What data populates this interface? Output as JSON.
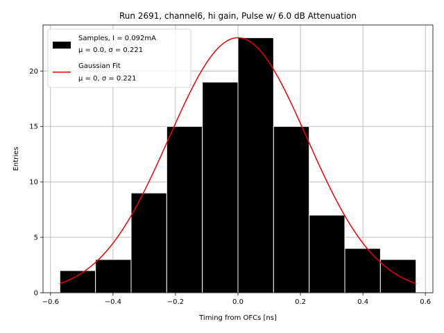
{
  "chart_data": {
    "type": "bar",
    "title": "Run 2691, channel6, hi gain, Pulse w/ 6.0 dB Attenuation",
    "xlabel": "Timing from OFCs [ns]",
    "ylabel": "Entries",
    "xlim": [
      -0.624,
      0.624
    ],
    "ylim": [
      0,
      24.15
    ],
    "xticks": [
      -0.6,
      -0.4,
      -0.2,
      0.0,
      0.2,
      0.4,
      0.6
    ],
    "xtick_labels": [
      "−0.6",
      "−0.4",
      "−0.2",
      "0.0",
      "0.2",
      "0.4",
      "0.6"
    ],
    "yticks": [
      0,
      5,
      10,
      15,
      20
    ],
    "ytick_labels": [
      "0",
      "5",
      "10",
      "15",
      "20"
    ],
    "grid": true,
    "legend_position": "top-left",
    "bin_edges": [
      -0.57,
      -0.456,
      -0.342,
      -0.228,
      -0.114,
      0.0,
      0.114,
      0.228,
      0.342,
      0.456,
      0.57
    ],
    "bin_centers": [
      -0.513,
      -0.399,
      -0.285,
      -0.171,
      -0.057,
      0.057,
      0.171,
      0.285,
      0.399,
      0.513
    ],
    "values": [
      2,
      3,
      9,
      15,
      19,
      23,
      15,
      7,
      4,
      3
    ],
    "bar_color": "#000000",
    "bar_edge_color": "#ffffff",
    "fit": {
      "mu": 0.0,
      "sigma": 0.221,
      "amplitude": 23,
      "x_range": [
        -0.57,
        0.57
      ],
      "color": "#ee0000"
    },
    "legend": [
      {
        "type": "patch",
        "color": "#000000",
        "line1": "Samples, I = 0.092mA",
        "line2": "μ = 0.0, σ = 0.221"
      },
      {
        "type": "line",
        "color": "#ee0000",
        "line1": "Gaussian Fit",
        "line2": "μ = 0, σ = 0.221"
      }
    ]
  }
}
